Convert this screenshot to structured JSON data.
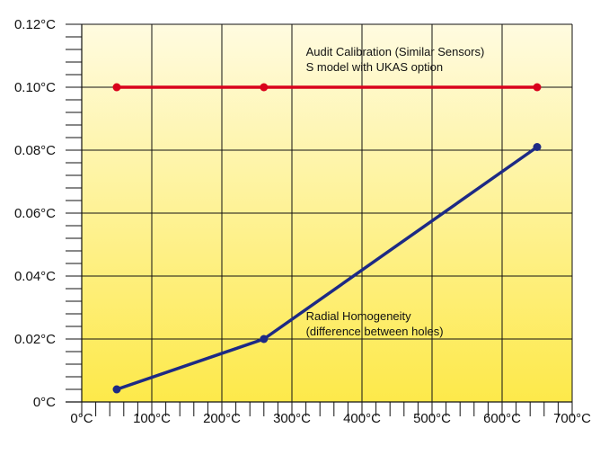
{
  "chart_data": {
    "type": "line",
    "title": "",
    "xlabel": "",
    "ylabel": "",
    "xlim": [
      0,
      700
    ],
    "ylim": [
      0,
      0.12
    ],
    "x_ticks": [
      0,
      100,
      200,
      300,
      400,
      500,
      600,
      700
    ],
    "x_tick_labels": [
      "0°C",
      "100°C",
      "200°C",
      "300°C",
      "400°C",
      "500°C",
      "600°C",
      "700°C"
    ],
    "y_ticks": [
      0,
      0.02,
      0.04,
      0.06,
      0.08,
      0.1,
      0.12
    ],
    "y_tick_labels": [
      "0°C",
      "0.02°C",
      "0.04°C",
      "0.06°C",
      "0.08°C",
      "0.10°C",
      "0.12°C"
    ],
    "grid": true,
    "background": "yellow-gradient",
    "series": [
      {
        "key": "audit",
        "color": "#d9021c",
        "points": [
          {
            "x": 50,
            "y": 0.1
          },
          {
            "x": 260,
            "y": 0.1
          },
          {
            "x": 650,
            "y": 0.1
          }
        ]
      },
      {
        "key": "radial",
        "color": "#1d2a85",
        "points": [
          {
            "x": 50,
            "y": 0.004
          },
          {
            "x": 260,
            "y": 0.02
          },
          {
            "x": 650,
            "y": 0.081
          }
        ]
      }
    ],
    "annotations": [
      {
        "key": "audit",
        "lines": [
          "Audit Calibration (Similar Sensors)",
          "S model with UKAS option"
        ],
        "x": 320,
        "y": 0.11
      },
      {
        "key": "radial",
        "lines": [
          "Radial Homogeneity",
          "(difference between holes)"
        ],
        "x": 320,
        "y": 0.026
      }
    ],
    "colors": {
      "grid": "#111111",
      "bg_top": "#fffbe0",
      "bg_bottom": "#fde94a",
      "audit": "#d9021c",
      "radial": "#1d2a85"
    }
  }
}
